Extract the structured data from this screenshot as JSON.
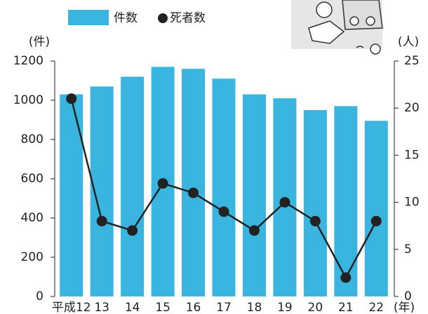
{
  "chart_data": {
    "type": "bar_line",
    "categories": [
      "平成12",
      "13",
      "14",
      "15",
      "16",
      "17",
      "18",
      "19",
      "20",
      "21",
      "22"
    ],
    "x_label": "(年)",
    "y_label": "(件)",
    "y2_label": "(人)",
    "series": [
      {
        "name": "件数",
        "type": "bar",
        "color": "#3ab5e0",
        "values": [
          1030,
          1070,
          1120,
          1170,
          1160,
          1110,
          1030,
          1010,
          950,
          970,
          895
        ]
      },
      {
        "name": "死者数",
        "type": "line",
        "axis": "y2",
        "color": "#222222",
        "values": [
          21,
          8,
          7,
          12,
          11,
          9,
          7,
          10,
          8,
          2,
          8
        ]
      }
    ],
    "ylim": [
      0,
      1200
    ],
    "yticks": [
      0,
      200,
      400,
      600,
      800,
      1000,
      1200
    ],
    "y2lim": [
      0,
      25
    ],
    "y2ticks": [
      0,
      5,
      10,
      15,
      20,
      25
    ]
  }
}
